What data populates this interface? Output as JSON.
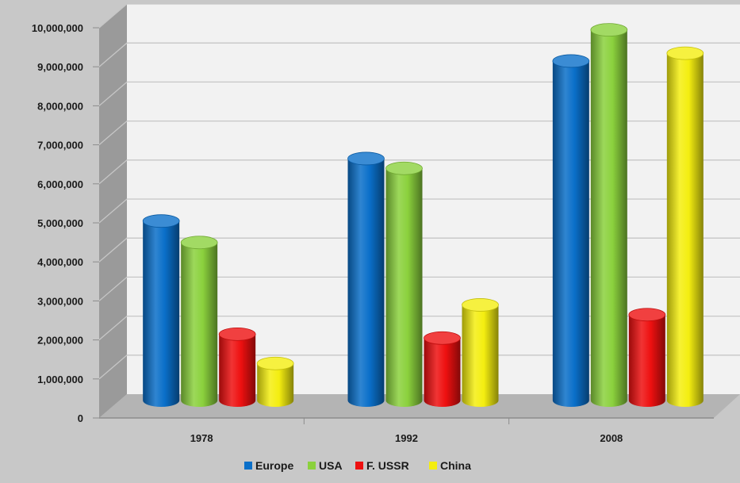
{
  "chart_data": {
    "type": "bar",
    "title": "",
    "xlabel": "",
    "ylabel": "",
    "categories": [
      "1978",
      "1992",
      "2008"
    ],
    "series": [
      {
        "name": "Europe",
        "values": [
          4600000,
          6200000,
          8700000
        ],
        "color": "#0a6fc9"
      },
      {
        "name": "USA",
        "values": [
          4050000,
          5950000,
          9500000
        ],
        "color": "#8bd13d"
      },
      {
        "name": "F. USSR",
        "values": [
          1700000,
          1600000,
          2200000
        ],
        "color": "#ee1010"
      },
      {
        "name": "China",
        "values": [
          950000,
          2450000,
          8900000
        ],
        "color": "#f4ee10"
      }
    ],
    "ylim": [
      0,
      10000000
    ],
    "yticks": [
      0,
      1000000,
      2000000,
      3000000,
      4000000,
      5000000,
      6000000,
      7000000,
      8000000,
      9000000,
      10000000
    ],
    "ytick_labels": [
      "0",
      "1,000,000",
      "2,000,000",
      "3,000,000",
      "4,000,000",
      "5,000,000",
      "6,000,000",
      "7,000,000",
      "8,000,000",
      "9,000,000",
      "10,000,000"
    ],
    "grid": true,
    "legend_position": "bottom",
    "style": "3d-cylinder"
  }
}
